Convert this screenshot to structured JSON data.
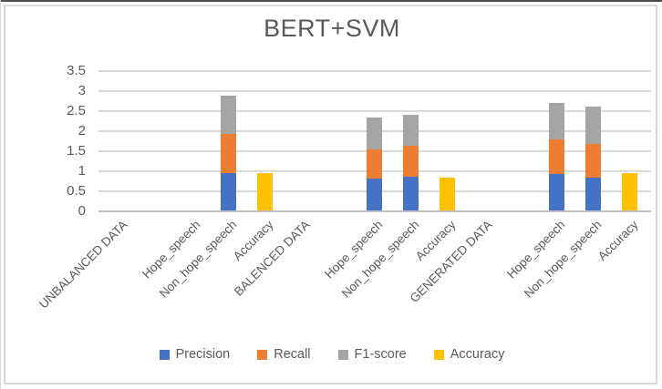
{
  "chart_data": {
    "type": "bar",
    "stacked": true,
    "title": "BERT+SVM",
    "xlabel": "",
    "ylabel": "",
    "ylim": [
      0,
      3.5
    ],
    "ytick_step": 0.5,
    "ytick_labels": [
      "0",
      "0.5",
      "1",
      "1.5",
      "2",
      "2.5",
      "3",
      "3.5"
    ],
    "grid": true,
    "legend_position": "bottom",
    "categories": [
      "UNBALANCED DATA",
      "",
      "Hope_speech",
      "Non_hope_speech",
      "Accuracy",
      "BALENCED DATA",
      "",
      "Hope_speech",
      "Non_hope_speech",
      "Accuracy",
      "GENERATED DATA",
      "",
      "Hope_speech",
      "Non_hope_speech",
      "Accuracy"
    ],
    "series": [
      {
        "name": "Precision",
        "color": "#4472C4",
        "values": [
          0,
          0,
          0,
          0.93,
          0,
          0,
          0,
          0.79,
          0.83,
          0,
          0,
          0,
          0.9,
          0.82,
          0
        ]
      },
      {
        "name": "Recall",
        "color": "#ED7D31",
        "values": [
          0,
          0,
          0,
          0.99,
          0,
          0,
          0,
          0.74,
          0.78,
          0,
          0,
          0,
          0.88,
          0.85,
          0
        ]
      },
      {
        "name": "F1-score",
        "color": "#A5A5A5",
        "values": [
          0,
          0,
          0,
          0.95,
          0,
          0,
          0,
          0.78,
          0.78,
          0,
          0,
          0,
          0.91,
          0.93,
          0
        ]
      },
      {
        "name": "Accuracy",
        "color": "#FFC000",
        "values": [
          0,
          0,
          0,
          0,
          0.93,
          0,
          0,
          0,
          0,
          0.81,
          0,
          0,
          0,
          0,
          0.94
        ]
      }
    ],
    "colors": {
      "grid": "#D9D9D9",
      "axis_line": "#BFBFBF",
      "text": "#595959",
      "title": "#595959"
    }
  }
}
